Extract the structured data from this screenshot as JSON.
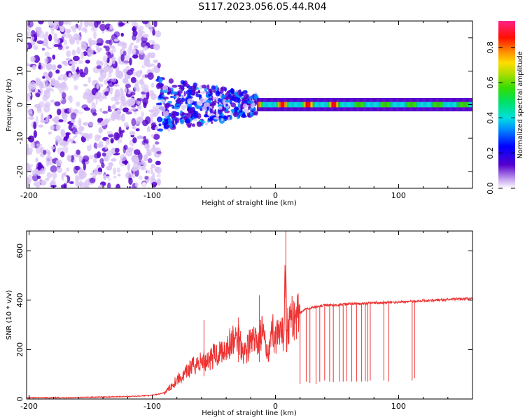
{
  "title": "S117.2023.056.05.44.R04",
  "colors": {
    "snr_line": "#ee3333",
    "background": "#ffffff",
    "axis": "#000000"
  },
  "chart_data": [
    {
      "type": "heatmap",
      "xlabel": "Height of straight line (km)",
      "ylabel": "Frequency (Hz)",
      "xlim": [
        -202,
        160
      ],
      "ylim": [
        -25,
        25
      ],
      "x_ticks": [
        "-200",
        "-100",
        "0",
        "100"
      ],
      "x_tick_values": [
        -200,
        -100,
        0,
        100
      ],
      "y_ticks": [
        "-20",
        "-10",
        "0",
        "10",
        "20"
      ],
      "y_tick_values": [
        -20,
        -10,
        0,
        10,
        20
      ],
      "colorbar": {
        "label": "Normalized spectral amplitude",
        "range": [
          0,
          0.95
        ],
        "ticks": [
          "0.0",
          "0.2",
          "0.4",
          "0.6",
          "0.8"
        ],
        "tick_values": [
          0.0,
          0.2,
          0.4,
          0.6,
          0.8
        ],
        "colormap": "rainbow (white-violet-blue-cyan-green-yellow-red-magenta)"
      },
      "regions": [
        {
          "x_range": [
            -202,
            -95
          ],
          "description_values": {
            "frequency_spread": 25,
            "amplitude": 0.05
          }
        },
        {
          "x_range": [
            -95,
            -15
          ],
          "description_values": {
            "frequency_spread": 8,
            "amplitude": 0.25
          }
        },
        {
          "x_range": [
            -15,
            160
          ],
          "description_values": {
            "frequency_center": 0,
            "amplitude": 0.6
          }
        }
      ]
    },
    {
      "type": "line",
      "xlabel": "Height of straight line (km)",
      "ylabel": "SNR (10 * v/v)",
      "xlim": [
        -202,
        160
      ],
      "ylim": [
        0,
        680
      ],
      "x_ticks": [
        "-200",
        "-100",
        "0",
        "100"
      ],
      "x_tick_values": [
        -200,
        -100,
        0,
        100
      ],
      "y_ticks": [
        "0",
        "200",
        "400",
        "600"
      ],
      "y_tick_values": [
        0,
        200,
        400,
        600
      ],
      "series": [
        {
          "x": [
            -202,
            -180,
            -160,
            -140,
            -120,
            -100,
            -90,
            -85,
            -80,
            -75,
            -70,
            -65,
            -60,
            -55,
            -50,
            -45,
            -40,
            -35,
            -30,
            -25,
            -20,
            -15,
            -12,
            -10,
            -8,
            -5,
            -2,
            0,
            2,
            5,
            7,
            8,
            9,
            10,
            12,
            15,
            18,
            20,
            25,
            30,
            35,
            40,
            50,
            60,
            70,
            80,
            90,
            100,
            110,
            120,
            130,
            140,
            150,
            160
          ],
          "y": [
            5,
            5,
            6,
            8,
            10,
            15,
            25,
            50,
            80,
            90,
            120,
            140,
            150,
            160,
            175,
            190,
            210,
            230,
            250,
            190,
            230,
            230,
            260,
            270,
            200,
            220,
            280,
            240,
            250,
            255,
            270,
            660,
            260,
            295,
            320,
            330,
            340,
            350,
            365,
            370,
            375,
            380,
            380,
            385,
            385,
            390,
            390,
            392,
            395,
            398,
            400,
            402,
            405,
            407
          ]
        }
      ],
      "spikes_down": [
        {
          "x": 20,
          "y": 60
        },
        {
          "x": 25,
          "y": 70
        },
        {
          "x": 28,
          "y": 65
        },
        {
          "x": 33,
          "y": 60
        },
        {
          "x": 36,
          "y": 70
        },
        {
          "x": 40,
          "y": 75
        },
        {
          "x": 44,
          "y": 70
        },
        {
          "x": 47,
          "y": 68
        },
        {
          "x": 52,
          "y": 70
        },
        {
          "x": 55,
          "y": 70
        },
        {
          "x": 58,
          "y": 72
        },
        {
          "x": 62,
          "y": 70
        },
        {
          "x": 66,
          "y": 70
        },
        {
          "x": 70,
          "y": 70
        },
        {
          "x": 73,
          "y": 72
        },
        {
          "x": 75,
          "y": 70
        },
        {
          "x": 77,
          "y": 75
        },
        {
          "x": 88,
          "y": 75
        },
        {
          "x": 92,
          "y": 70
        },
        {
          "x": 111,
          "y": 75
        },
        {
          "x": 113,
          "y": 85
        }
      ],
      "spikes_up": [
        {
          "x": -58,
          "y": 320
        },
        {
          "x": -30,
          "y": 330
        },
        {
          "x": -13,
          "y": 420
        },
        {
          "x": 8.5,
          "y": 680
        }
      ]
    }
  ]
}
